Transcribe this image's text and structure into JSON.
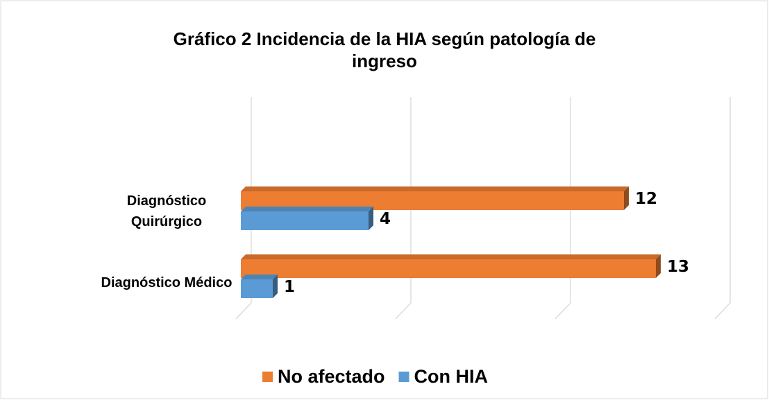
{
  "chart_data": {
    "type": "bar3d_horizontal",
    "title": "Gráfico 2  Incidencia de la HIA según patología de\ningreso",
    "categories": [
      "Diagnóstico\nQuirúrgico",
      "Diagnóstico Médico"
    ],
    "series": [
      {
        "name": "No afectado",
        "color": "#ed7d31",
        "values": [
          12,
          13
        ]
      },
      {
        "name": "Con HIA",
        "color": "#5b9bd5",
        "values": [
          4,
          1
        ]
      }
    ],
    "xlim": [
      0,
      15
    ],
    "xticks": [
      0,
      5,
      10,
      15
    ],
    "grid": true,
    "legend": "bottom"
  }
}
